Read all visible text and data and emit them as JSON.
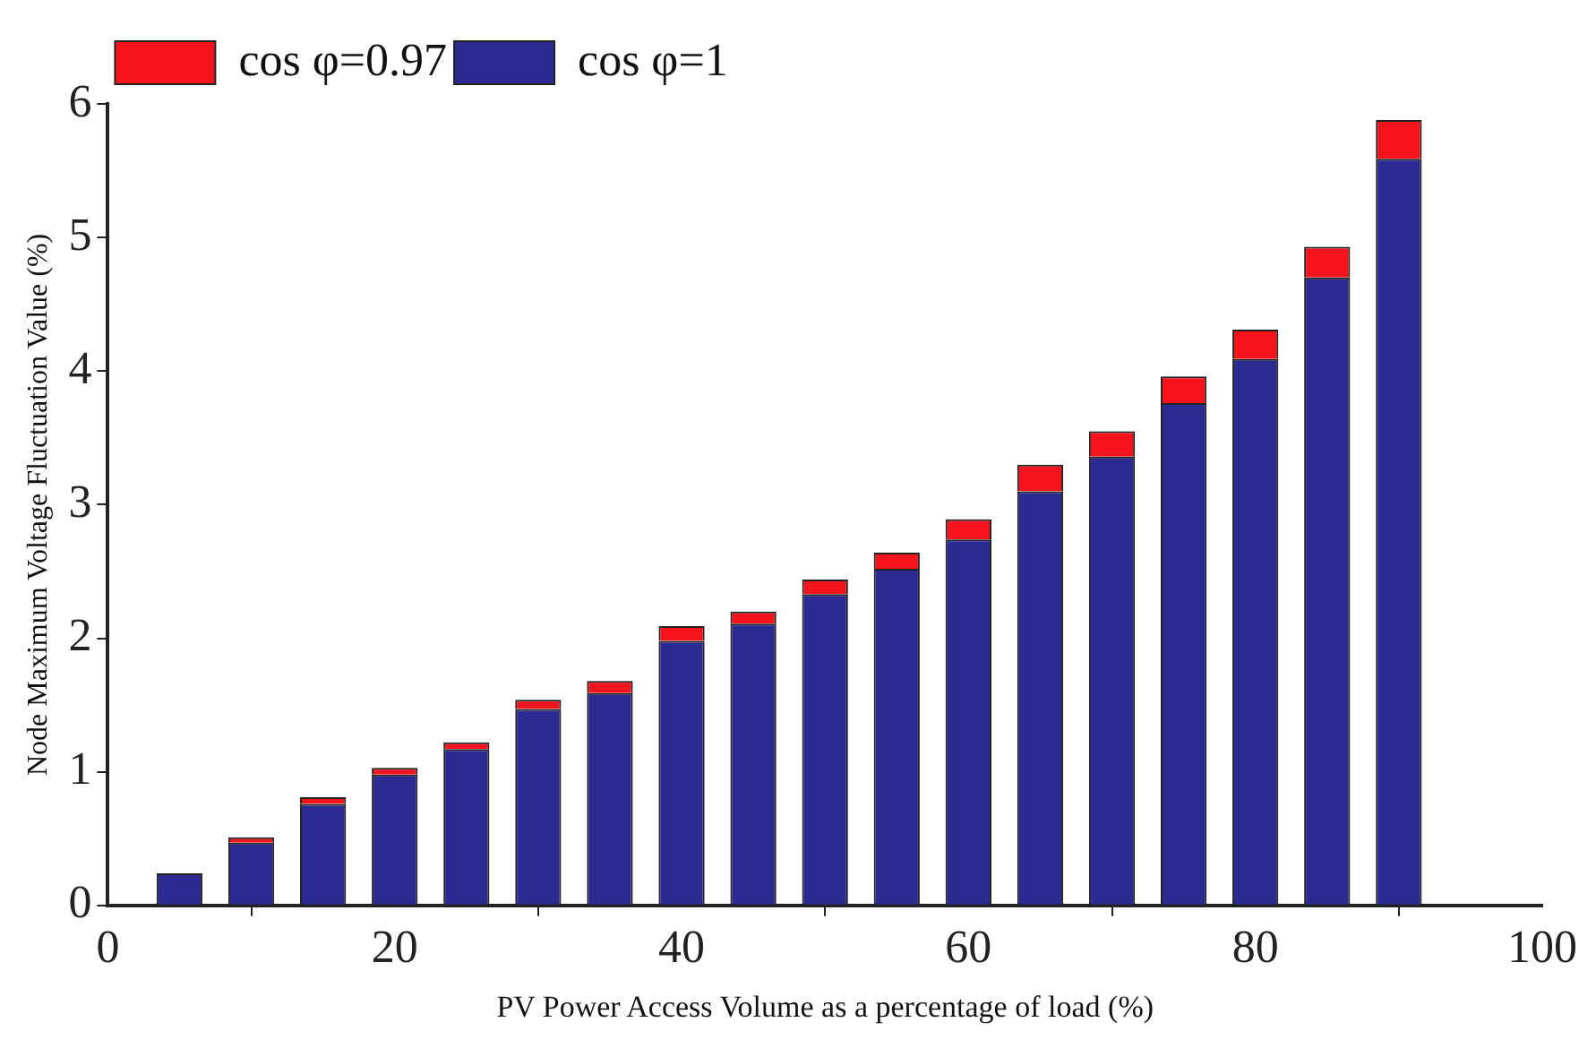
{
  "chart_data": {
    "type": "bar",
    "stacked": true,
    "xlabel": "PV Power Access Volume as a percentage of load (%)",
    "ylabel": "Node Maximum Voltage Fluctuation Value (%)",
    "x": [
      5,
      10,
      15,
      20,
      25,
      30,
      35,
      40,
      45,
      50,
      55,
      60,
      65,
      70,
      75,
      80,
      85,
      90
    ],
    "series": [
      {
        "name": "cos φ=1",
        "color": "#2b2a93",
        "values": [
          0.24,
          0.47,
          0.76,
          0.98,
          1.17,
          1.47,
          1.59,
          1.98,
          2.11,
          2.33,
          2.52,
          2.74,
          3.1,
          3.36,
          3.76,
          4.09,
          4.7,
          5.59
        ]
      },
      {
        "name": "cos φ=0.97",
        "color": "#f5141e",
        "values": [
          0,
          0.04,
          0.05,
          0.05,
          0.05,
          0.07,
          0.09,
          0.11,
          0.09,
          0.11,
          0.12,
          0.15,
          0.2,
          0.19,
          0.2,
          0.22,
          0.23,
          0.29
        ]
      }
    ],
    "xlim": [
      0,
      100
    ],
    "xticks": [
      0,
      20,
      40,
      60,
      80,
      100
    ],
    "ylim": [
      0,
      6
    ],
    "yticks": [
      0,
      1,
      2,
      3,
      4,
      5,
      6
    ],
    "grid": false,
    "legend": "top left"
  }
}
